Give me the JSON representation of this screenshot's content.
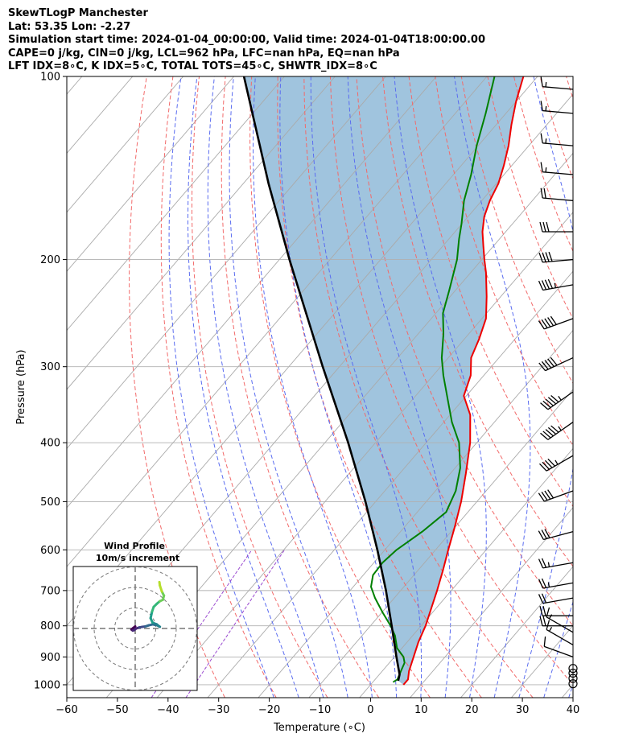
{
  "header": {
    "line1": "SkewTLogP Manchester",
    "line2": "Lat: 53.35   Lon: -2.27",
    "line3": "Simulation start time: 2024-01-04_00:00:00, Valid time: 2024-01-04T18:00:00.00",
    "line4": "CAPE=0 j/kg, CIN=0 j/kg, LCL=962 hPa, LFC=nan hPa, EQ=nan hPa",
    "line5": "LFT IDX=8∘C, K IDX=5∘C, TOTAL TOTS=45∘C, SHWTR_IDX=8∘C"
  },
  "chart_data": {
    "type": "line",
    "title": "SkewTLogP Manchester",
    "xlabel": "Temperature (∘C)",
    "ylabel": "Pressure (hPa)",
    "xlim": [
      -60,
      40
    ],
    "ylim": [
      1050,
      100
    ],
    "skew_deg_per_decade": 103,
    "x_ticks": [
      -60,
      -50,
      -40,
      -30,
      -20,
      -10,
      0,
      10,
      20,
      30,
      40
    ],
    "x_tick_labels": [
      "−60",
      "−50",
      "−40",
      "−30",
      "−20",
      "−10",
      "0",
      "10",
      "20",
      "30",
      "40"
    ],
    "y_ticks": [
      1000,
      900,
      800,
      700,
      600,
      500,
      400,
      300,
      200,
      100
    ],
    "y_tick_labels": [
      "1000",
      "900",
      "800",
      "700",
      "600",
      "500",
      "400",
      "300",
      "200",
      "100"
    ],
    "colors": {
      "temperature": "#ee0000",
      "dewpoint": "#008000",
      "parcel": "#000000",
      "fill": "#a0c4de",
      "isotherm": "#aaaaaa",
      "dry_adiabat": "#f26a6a",
      "moist_adiabat": "#5a6cf0",
      "mixing_ratio": "#9a4ad0",
      "grid": "#b0b0b0"
    },
    "series": [
      {
        "name": "Temperature",
        "points": [
          [
            1000,
            6.5
          ],
          [
            980,
            6.5
          ],
          [
            950,
            5.3
          ],
          [
            900,
            3.8
          ],
          [
            850,
            2.2
          ],
          [
            800,
            0.9
          ],
          [
            750,
            -0.9
          ],
          [
            700,
            -2.8
          ],
          [
            650,
            -5.0
          ],
          [
            600,
            -7.5
          ],
          [
            550,
            -10.1
          ],
          [
            500,
            -13.1
          ],
          [
            450,
            -16.9
          ],
          [
            400,
            -21.3
          ],
          [
            360,
            -26.0
          ],
          [
            335,
            -30.5
          ],
          [
            310,
            -32.6
          ],
          [
            290,
            -35.5
          ],
          [
            270,
            -37.1
          ],
          [
            250,
            -39.2
          ],
          [
            230,
            -42.8
          ],
          [
            210,
            -47.0
          ],
          [
            200,
            -49.5
          ],
          [
            190,
            -52.0
          ],
          [
            180,
            -54.6
          ],
          [
            170,
            -56.8
          ],
          [
            160,
            -58.4
          ],
          [
            150,
            -59.6
          ],
          [
            140,
            -61.6
          ],
          [
            130,
            -64.0
          ],
          [
            120,
            -67.0
          ],
          [
            110,
            -70.0
          ],
          [
            100,
            -72.8
          ]
        ]
      },
      {
        "name": "Dewpoint",
        "points": [
          [
            990,
            4.0
          ],
          [
            980,
            4.4
          ],
          [
            950,
            3.7
          ],
          [
            920,
            3.0
          ],
          [
            900,
            1.8
          ],
          [
            870,
            -1.0
          ],
          [
            830,
            -3.5
          ],
          [
            800,
            -6.0
          ],
          [
            760,
            -9.9
          ],
          [
            720,
            -13.8
          ],
          [
            690,
            -16.5
          ],
          [
            660,
            -18.1
          ],
          [
            630,
            -18.3
          ],
          [
            600,
            -17.7
          ],
          [
            560,
            -15.7
          ],
          [
            520,
            -14.3
          ],
          [
            480,
            -16.0
          ],
          [
            440,
            -19.0
          ],
          [
            400,
            -23.5
          ],
          [
            370,
            -28.4
          ],
          [
            340,
            -33.0
          ],
          [
            310,
            -38.0
          ],
          [
            290,
            -41.3
          ],
          [
            265,
            -45.0
          ],
          [
            245,
            -48.6
          ],
          [
            225,
            -51.2
          ],
          [
            200,
            -54.9
          ],
          [
            185,
            -58.0
          ],
          [
            175,
            -60.0
          ],
          [
            160,
            -63.5
          ],
          [
            145,
            -66.5
          ],
          [
            130,
            -70.3
          ],
          [
            115,
            -74.0
          ],
          [
            100,
            -78.5
          ]
        ]
      },
      {
        "name": "Parcel",
        "points": [
          [
            985,
            4.8
          ],
          [
            962,
            4.0
          ],
          [
            900,
            0.4
          ],
          [
            800,
            -5.8
          ],
          [
            700,
            -12.9
          ],
          [
            600,
            -21.5
          ],
          [
            500,
            -32.0
          ],
          [
            400,
            -45.4
          ],
          [
            300,
            -63.3
          ],
          [
            200,
            -88.0
          ],
          [
            150,
            -105.0
          ],
          [
            100,
            -128.0
          ]
        ]
      }
    ],
    "wind_barbs": {
      "pressures": [
        996,
        976,
        957,
        940,
        900,
        860,
        820,
        800,
        770,
        720,
        680,
        630,
        560,
        480,
        420,
        370,
        330,
        290,
        250,
        220,
        200,
        180,
        160,
        145,
        130,
        115,
        105
      ],
      "speeds_kt": [
        0,
        0,
        0,
        0,
        10,
        15,
        15,
        20,
        20,
        20,
        25,
        25,
        30,
        40,
        45,
        55,
        55,
        50,
        50,
        45,
        40,
        30,
        20,
        15,
        15,
        15,
        15
      ],
      "directions_deg": [
        0,
        0,
        0,
        0,
        290,
        300,
        300,
        270,
        270,
        260,
        260,
        260,
        255,
        250,
        240,
        235,
        235,
        245,
        250,
        260,
        265,
        270,
        275,
        275,
        275,
        275,
        275
      ]
    },
    "hodograph": {
      "title": "Wind Profile",
      "subtitle": "10m/s increment",
      "ring_step_ms": 10,
      "rings": 3,
      "points_uv_ms": [
        [
          0.0,
          1.0
        ],
        [
          -1.0,
          0.2
        ],
        [
          -1.8,
          -0.5
        ],
        [
          -1.2,
          -1.0
        ],
        [
          -0.5,
          -0.8
        ],
        [
          0.5,
          0.0
        ],
        [
          2.0,
          0.5
        ],
        [
          3.5,
          0.8
        ],
        [
          5.0,
          1.0
        ],
        [
          6.5,
          1.5
        ],
        [
          8.5,
          2.0
        ],
        [
          10.8,
          1.5
        ],
        [
          12.0,
          0.8
        ],
        [
          10.5,
          2.0
        ],
        [
          8.5,
          2.8
        ],
        [
          7.5,
          5.0
        ],
        [
          8.2,
          8.2
        ],
        [
          9.0,
          10.5
        ],
        [
          10.5,
          12.0
        ],
        [
          12.0,
          13.3
        ],
        [
          13.5,
          14.0
        ],
        [
          14.0,
          16.0
        ],
        [
          13.0,
          18.0
        ],
        [
          12.0,
          21.0
        ],
        [
          11.8,
          22.6
        ]
      ]
    }
  }
}
